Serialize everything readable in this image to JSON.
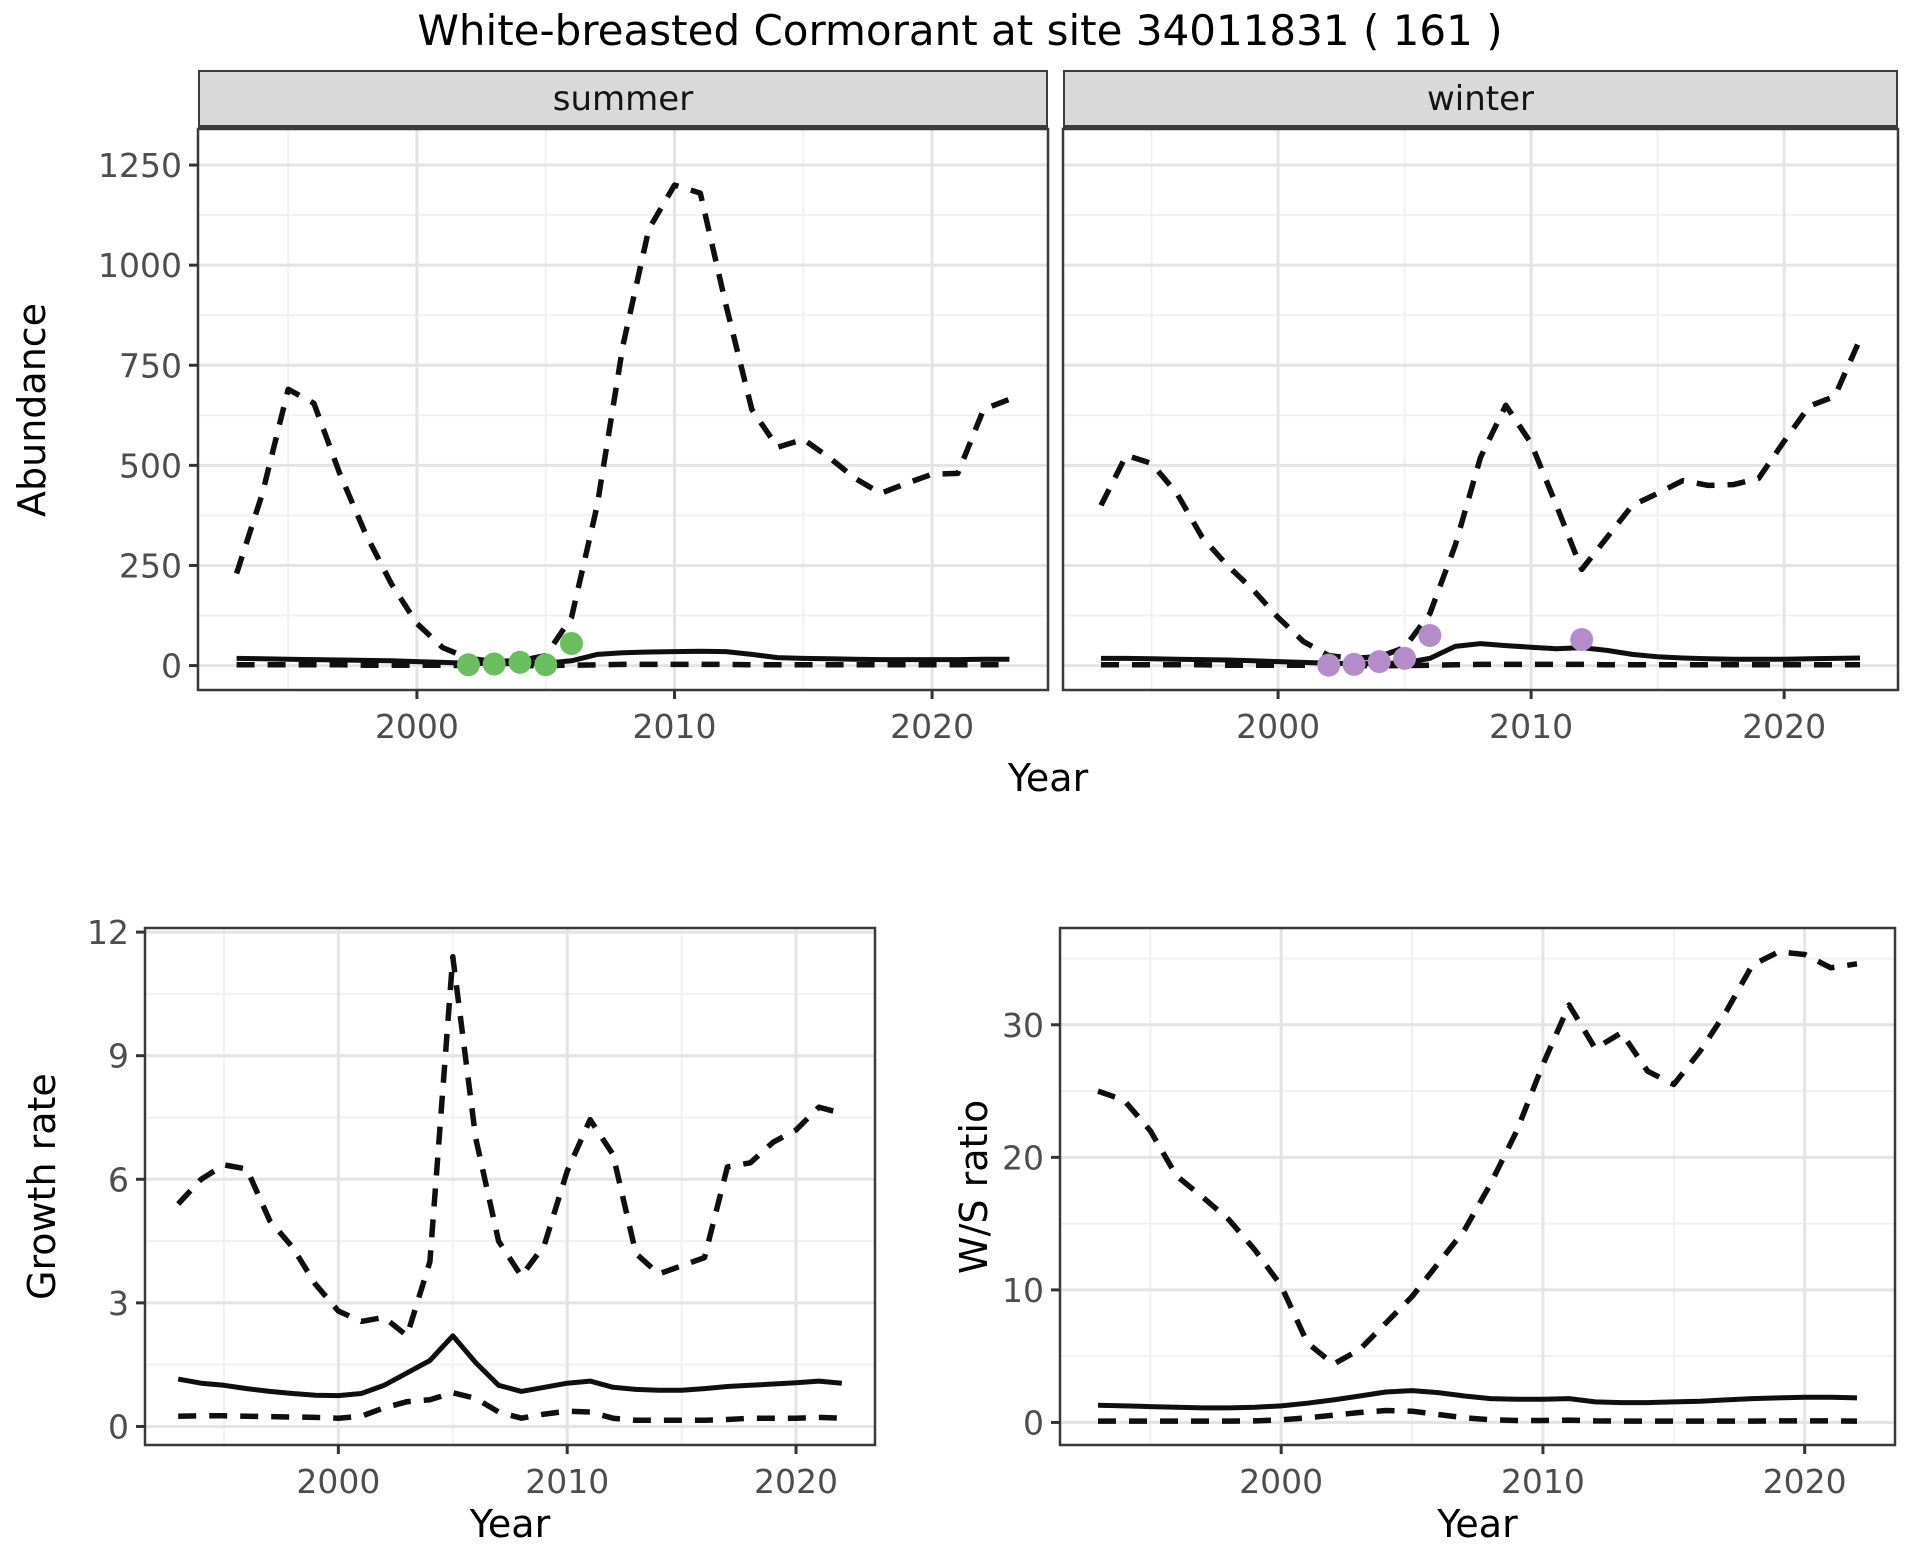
{
  "title": "White-breasted Cormorant at site 34011831 ( 161 )",
  "colors": {
    "summer_points": "#6BBE5F",
    "winter_points": "#B48CC9",
    "line": "#0f0f0f",
    "strip_bg": "#D9D9D9",
    "grid_major": "#E4E4E4",
    "grid_minor": "#F1F1F1",
    "panel_border": "#3A3A3A",
    "tick_mark": "#333333",
    "tick_text": "#4D4D4D"
  },
  "axis_labels": {
    "top_y": "Abundance",
    "top_x": "Year",
    "growth_y": "Growth rate",
    "growth_x": "Year",
    "ws_y": "W/S ratio",
    "ws_x": "Year"
  },
  "chart_data": [
    {
      "id": "abundance_summer",
      "type": "line",
      "facet_label": "summer",
      "ylabel": "Abundance",
      "xlabel": "Year",
      "xlim": [
        1991.5,
        2024.5
      ],
      "ylim": [
        -61,
        1340
      ],
      "x_ticks": [
        2000,
        2010,
        2020
      ],
      "x_minor": [
        1995,
        2005,
        2015
      ],
      "y_ticks": [
        0,
        250,
        500,
        750,
        1000,
        1250
      ],
      "y_minor": [
        125,
        375,
        625,
        875,
        1125
      ],
      "years": [
        1993,
        1994,
        1995,
        1996,
        1997,
        1998,
        1999,
        2000,
        2001,
        2002,
        2003,
        2004,
        2005,
        2006,
        2007,
        2008,
        2009,
        2010,
        2011,
        2012,
        2013,
        2014,
        2015,
        2016,
        2017,
        2018,
        2019,
        2020,
        2021,
        2022,
        2023
      ],
      "series": [
        {
          "name": "upper_ci",
          "style": "dashed",
          "values": [
            230,
            430,
            690,
            655,
            480,
            330,
            205,
            105,
            45,
            18,
            10,
            12,
            25,
            120,
            400,
            800,
            1090,
            1200,
            1180,
            900,
            640,
            545,
            565,
            520,
            468,
            430,
            455,
            478,
            480,
            640,
            665
          ]
        },
        {
          "name": "median",
          "style": "solid",
          "values": [
            18,
            17,
            16,
            15,
            14,
            13,
            12,
            10,
            8,
            6,
            5,
            5,
            6,
            12,
            28,
            32,
            34,
            35,
            36,
            35,
            28,
            20,
            18,
            17,
            16,
            15,
            15,
            15,
            15,
            16,
            16
          ]
        },
        {
          "name": "lower_ci",
          "style": "dashed",
          "values": [
            2,
            2,
            2,
            2,
            2,
            1,
            1,
            1,
            1,
            0,
            0,
            0,
            0,
            1,
            2,
            3,
            3,
            3,
            3,
            3,
            2,
            2,
            2,
            2,
            2,
            2,
            2,
            2,
            2,
            2,
            2
          ]
        }
      ],
      "points": {
        "name": "observed_summer",
        "color_key": "summer_points",
        "data": [
          [
            2002,
            2
          ],
          [
            2003,
            4
          ],
          [
            2004,
            8
          ],
          [
            2005,
            2
          ],
          [
            2006,
            55
          ]
        ]
      }
    },
    {
      "id": "abundance_winter",
      "type": "line",
      "facet_label": "winter",
      "ylabel": "Abundance",
      "xlabel": "Year",
      "xlim": [
        1991.5,
        2024.5
      ],
      "ylim": [
        -61,
        1340
      ],
      "x_ticks": [
        2000,
        2010,
        2020
      ],
      "x_minor": [
        1995,
        2005,
        2015
      ],
      "y_ticks": [
        0,
        250,
        500,
        750,
        1000,
        1250
      ],
      "y_minor": [
        125,
        375,
        625,
        875,
        1125
      ],
      "years": [
        1993,
        1994,
        1995,
        1996,
        1997,
        1998,
        1999,
        2000,
        2001,
        2002,
        2003,
        2004,
        2005,
        2006,
        2007,
        2008,
        2009,
        2010,
        2011,
        2012,
        2013,
        2014,
        2015,
        2016,
        2017,
        2018,
        2019,
        2020,
        2021,
        2022,
        2023
      ],
      "series": [
        {
          "name": "upper_ci",
          "style": "dashed",
          "values": [
            400,
            525,
            505,
            430,
            320,
            250,
            190,
            120,
            60,
            25,
            18,
            22,
            45,
            130,
            300,
            520,
            650,
            555,
            400,
            240,
            320,
            400,
            430,
            462,
            450,
            452,
            468,
            560,
            648,
            672,
            815
          ]
        },
        {
          "name": "median",
          "style": "solid",
          "values": [
            18,
            18,
            17,
            16,
            15,
            14,
            12,
            10,
            8,
            6,
            5,
            5,
            7,
            18,
            48,
            55,
            50,
            46,
            42,
            45,
            38,
            28,
            22,
            19,
            17,
            16,
            16,
            16,
            17,
            18,
            19
          ]
        },
        {
          "name": "lower_ci",
          "style": "dashed",
          "values": [
            2,
            2,
            2,
            2,
            2,
            1,
            1,
            1,
            1,
            0,
            0,
            0,
            0,
            1,
            2,
            3,
            3,
            3,
            3,
            3,
            2,
            2,
            2,
            2,
            2,
            2,
            2,
            2,
            2,
            2,
            2
          ]
        }
      ],
      "points": {
        "name": "observed_winter",
        "color_key": "winter_points",
        "data": [
          [
            2002,
            1
          ],
          [
            2003,
            3
          ],
          [
            2004,
            10
          ],
          [
            2005,
            18
          ],
          [
            2006,
            75
          ],
          [
            2012,
            65
          ]
        ]
      }
    },
    {
      "id": "growth_rate",
      "type": "line",
      "facet_label": "",
      "ylabel": "Growth rate",
      "xlabel": "Year",
      "xlim": [
        1991.55,
        2023.45
      ],
      "ylim": [
        -0.45,
        12.1
      ],
      "x_ticks": [
        2000,
        2010,
        2020
      ],
      "x_minor": [
        1995,
        2005,
        2015
      ],
      "y_ticks": [
        0,
        3,
        6,
        9,
        12
      ],
      "y_minor": [
        1.5,
        4.5,
        7.5,
        10.5
      ],
      "years": [
        1993,
        1994,
        1995,
        1996,
        1997,
        1998,
        1999,
        2000,
        2001,
        2002,
        2003,
        2004,
        2005,
        2006,
        2007,
        2008,
        2009,
        2010,
        2011,
        2012,
        2013,
        2014,
        2015,
        2016,
        2017,
        2018,
        2019,
        2020,
        2021,
        2022
      ],
      "series": [
        {
          "name": "upper_ci",
          "style": "dashed",
          "values": [
            5.4,
            6.0,
            6.35,
            6.25,
            5.0,
            4.35,
            3.45,
            2.8,
            2.55,
            2.65,
            2.2,
            4.0,
            11.4,
            7.0,
            4.5,
            3.65,
            4.4,
            6.2,
            7.45,
            6.6,
            4.2,
            3.7,
            3.9,
            4.1,
            6.3,
            6.4,
            6.9,
            7.2,
            7.75,
            7.6
          ]
        },
        {
          "name": "median",
          "style": "solid",
          "values": [
            1.15,
            1.05,
            1.0,
            0.92,
            0.85,
            0.8,
            0.76,
            0.75,
            0.8,
            1.0,
            1.3,
            1.6,
            2.2,
            1.55,
            1.0,
            0.85,
            0.95,
            1.05,
            1.1,
            0.95,
            0.9,
            0.88,
            0.88,
            0.92,
            0.97,
            1.0,
            1.03,
            1.06,
            1.1,
            1.05
          ]
        },
        {
          "name": "lower_ci",
          "style": "dashed",
          "values": [
            0.25,
            0.26,
            0.26,
            0.25,
            0.24,
            0.23,
            0.22,
            0.2,
            0.25,
            0.45,
            0.6,
            0.65,
            0.82,
            0.68,
            0.35,
            0.2,
            0.3,
            0.37,
            0.35,
            0.2,
            0.15,
            0.15,
            0.15,
            0.15,
            0.17,
            0.2,
            0.2,
            0.2,
            0.22,
            0.2
          ]
        }
      ],
      "points": null
    },
    {
      "id": "ws_ratio",
      "type": "line",
      "facet_label": "",
      "ylabel": "W/S ratio",
      "xlabel": "Year",
      "xlim": [
        1991.55,
        2023.45
      ],
      "ylim": [
        -1.7,
        37.3
      ],
      "x_ticks": [
        2000,
        2010,
        2020
      ],
      "x_minor": [
        1995,
        2005,
        2015
      ],
      "y_ticks": [
        0,
        10,
        20,
        30
      ],
      "y_minor": [
        5,
        15,
        25,
        35
      ],
      "years": [
        1993,
        1994,
        1995,
        1996,
        1997,
        1998,
        1999,
        2000,
        2001,
        2002,
        2003,
        2004,
        2005,
        2006,
        2007,
        2008,
        2009,
        2010,
        2011,
        2012,
        2013,
        2014,
        2015,
        2016,
        2017,
        2018,
        2019,
        2020,
        2021,
        2022
      ],
      "series": [
        {
          "name": "upper_ci",
          "style": "dashed",
          "values": [
            25.0,
            24.3,
            22.0,
            18.6,
            17.0,
            15.3,
            13.0,
            10.3,
            6.0,
            4.4,
            5.5,
            7.5,
            9.5,
            12.0,
            14.5,
            18.0,
            22.0,
            27.0,
            31.5,
            28.2,
            29.4,
            26.5,
            25.5,
            28.0,
            31.0,
            34.5,
            35.5,
            35.3,
            34.3,
            34.6
          ]
        },
        {
          "name": "median",
          "style": "solid",
          "values": [
            1.3,
            1.25,
            1.2,
            1.15,
            1.1,
            1.1,
            1.15,
            1.25,
            1.45,
            1.7,
            2.0,
            2.3,
            2.4,
            2.25,
            2.0,
            1.8,
            1.75,
            1.75,
            1.8,
            1.55,
            1.5,
            1.5,
            1.55,
            1.6,
            1.7,
            1.8,
            1.85,
            1.9,
            1.9,
            1.85
          ]
        },
        {
          "name": "lower_ci",
          "style": "dashed",
          "values": [
            0.1,
            0.1,
            0.1,
            0.1,
            0.1,
            0.1,
            0.12,
            0.2,
            0.35,
            0.55,
            0.75,
            0.9,
            0.85,
            0.6,
            0.35,
            0.2,
            0.15,
            0.15,
            0.18,
            0.12,
            0.1,
            0.1,
            0.1,
            0.1,
            0.1,
            0.1,
            0.12,
            0.12,
            0.12,
            0.1
          ]
        }
      ],
      "points": null
    }
  ]
}
